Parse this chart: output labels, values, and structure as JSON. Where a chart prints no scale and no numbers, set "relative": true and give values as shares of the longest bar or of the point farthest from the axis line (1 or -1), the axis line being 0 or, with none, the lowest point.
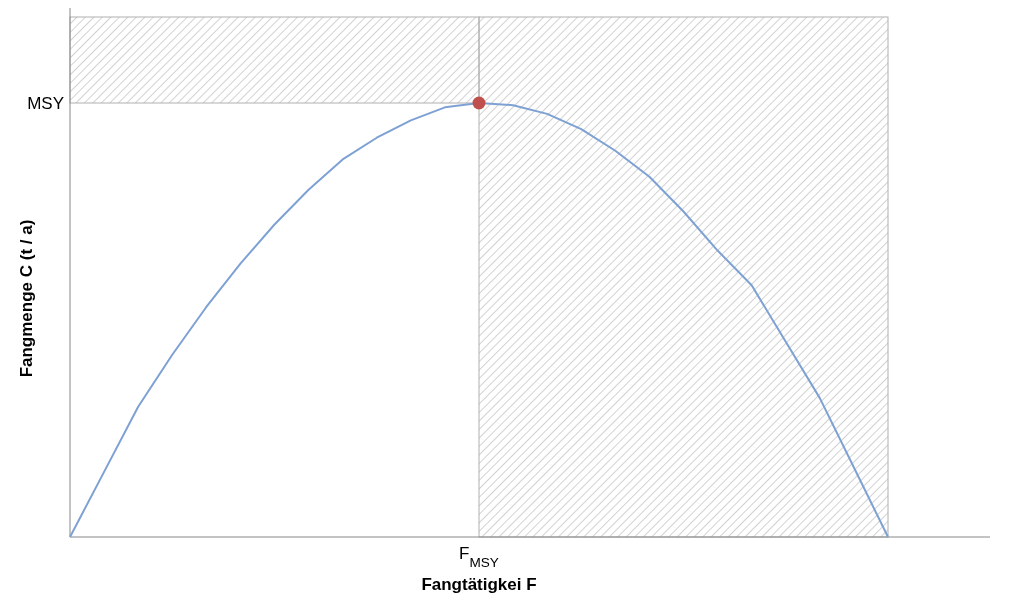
{
  "chart_data": {
    "type": "line",
    "relative": true,
    "xlabel": "Fangtätigkei F",
    "ylabel": "Fangmenge C (t / a)",
    "categories": [
      null,
      null,
      null,
      null,
      null,
      null,
      null,
      null,
      null,
      null,
      null,
      null,
      null,
      null,
      null,
      null,
      null,
      null,
      null,
      null,
      null,
      null,
      null,
      null,
      null
    ],
    "series": [
      {
        "color": "#7ea1d4",
        "values": [
          0,
          0.15,
          0.3,
          0.42,
          0.53,
          0.63,
          0.72,
          0.8,
          0.87,
          0.92,
          0.96,
          0.99,
          1,
          0.995,
          0.975,
          0.94,
          0.89,
          0.83,
          0.75,
          0.66,
          0.58,
          0.45,
          0.32,
          0.16,
          0
        ]
      }
    ],
    "annotations": [
      "MSY",
      "F$_{MSY}$"
    ],
    "marker": "none",
    "line_style": "solid"
  }
}
